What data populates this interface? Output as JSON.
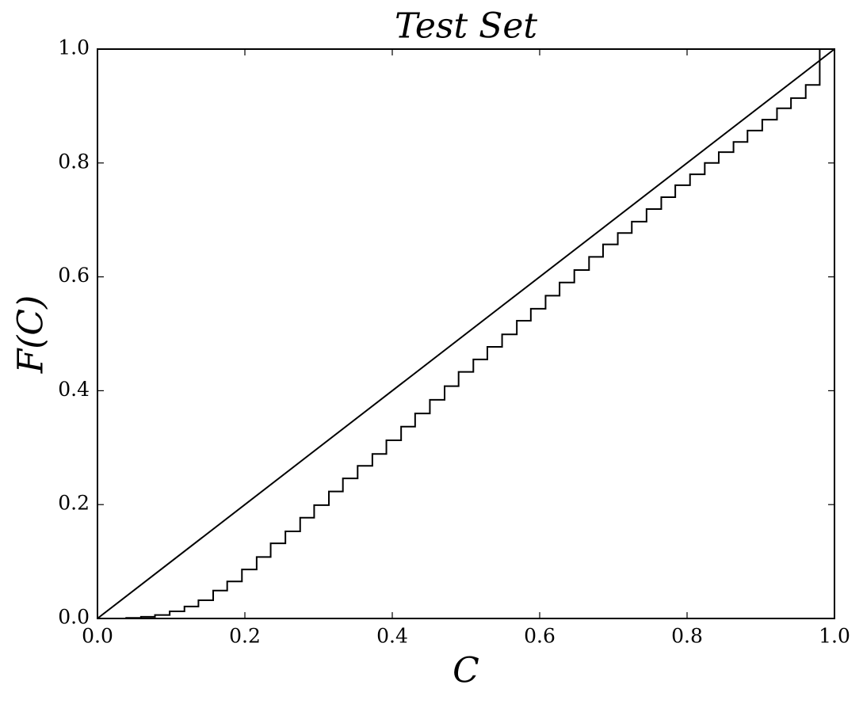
{
  "chart_data": {
    "type": "line",
    "title": "Test Set",
    "xlabel": "C",
    "ylabel": "F(C)",
    "xlim": [
      0,
      1
    ],
    "ylim": [
      0,
      1
    ],
    "xticks": [
      {
        "value": 0,
        "label": "0.0"
      },
      {
        "value": 0.2,
        "label": "0.2"
      },
      {
        "value": 0.4,
        "label": "0.4"
      },
      {
        "value": 0.6,
        "label": "0.6"
      },
      {
        "value": 0.8,
        "label": "0.8"
      },
      {
        "value": 1,
        "label": "1.0"
      }
    ],
    "yticks": [
      {
        "value": 0,
        "label": "0.0"
      },
      {
        "value": 0.2,
        "label": "0.2"
      },
      {
        "value": 0.4,
        "label": "0.4"
      },
      {
        "value": 0.6,
        "label": "0.6"
      },
      {
        "value": 0.8,
        "label": "0.8"
      },
      {
        "value": 1,
        "label": "1.0"
      }
    ],
    "grid": false,
    "series": [
      {
        "color": "#000000",
        "drawstyle": "steps-post",
        "x": [
          0,
          0.02,
          0.039,
          0.059,
          0.078,
          0.098,
          0.118,
          0.137,
          0.157,
          0.176,
          0.196,
          0.216,
          0.235,
          0.255,
          0.275,
          0.294,
          0.314,
          0.333,
          0.353,
          0.373,
          0.392,
          0.412,
          0.431,
          0.451,
          0.471,
          0.49,
          0.51,
          0.529,
          0.549,
          0.569,
          0.588,
          0.608,
          0.627,
          0.647,
          0.667,
          0.686,
          0.706,
          0.725,
          0.745,
          0.765,
          0.784,
          0.804,
          0.824,
          0.843,
          0.863,
          0.882,
          0.902,
          0.922,
          0.941,
          0.961,
          0.98
        ],
        "values": [
          0,
          0,
          0.001,
          0.003,
          0.006,
          0.0125,
          0.021,
          0.032,
          0.049,
          0.065,
          0.086,
          0.108,
          0.132,
          0.153,
          0.177,
          0.199,
          0.223,
          0.246,
          0.268,
          0.289,
          0.313,
          0.337,
          0.36,
          0.384,
          0.408,
          0.433,
          0.455,
          0.477,
          0.499,
          0.523,
          0.544,
          0.567,
          0.59,
          0.612,
          0.635,
          0.657,
          0.677,
          0.697,
          0.719,
          0.74,
          0.761,
          0.78,
          0.8,
          0.819,
          0.837,
          0.857,
          0.876,
          0.896,
          0.914,
          0.937,
          1
        ]
      },
      {
        "color": "#000000",
        "drawstyle": "default",
        "x": [
          0,
          1
        ],
        "values": [
          0,
          1
        ]
      }
    ]
  }
}
